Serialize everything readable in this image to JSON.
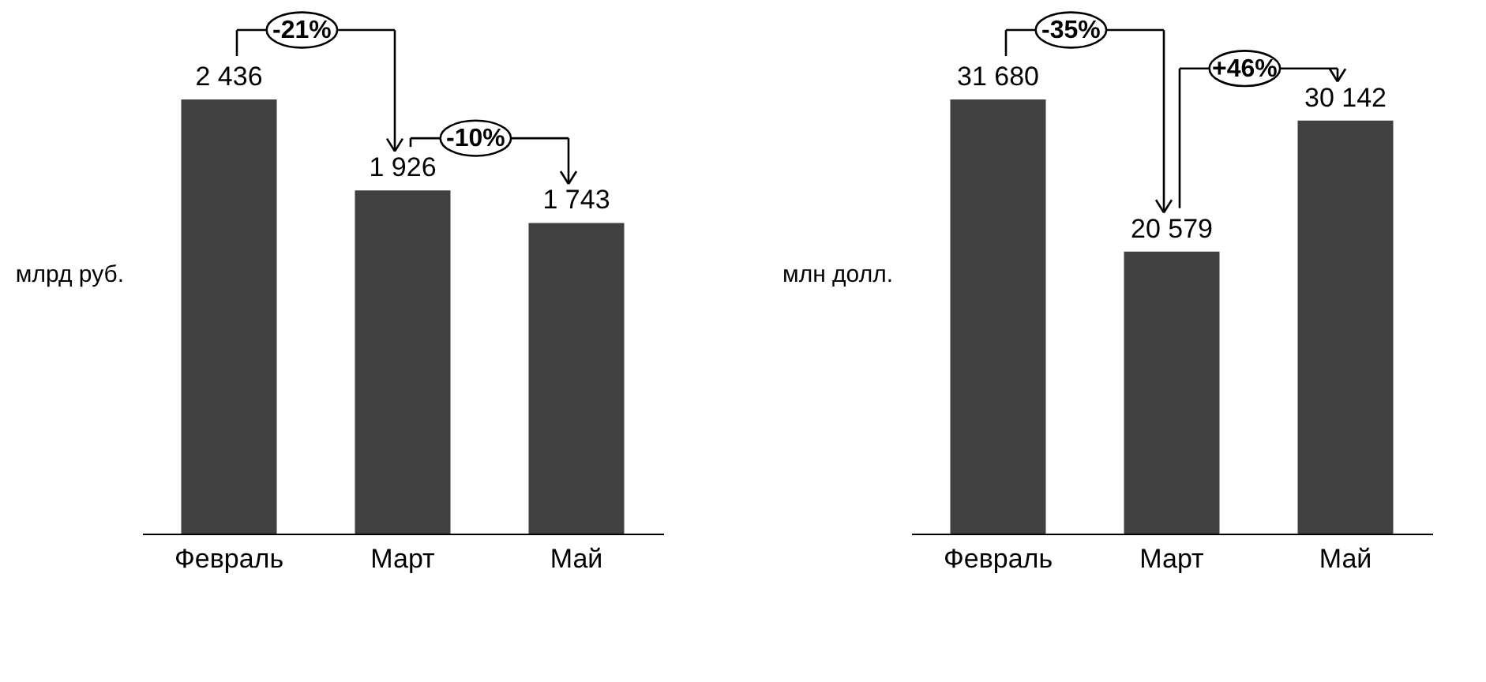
{
  "chart_data": [
    {
      "type": "bar",
      "ylabel": "млрд  руб.",
      "categories": [
        "Февраль",
        "Март",
        "Май"
      ],
      "values": [
        2436,
        1926,
        1743
      ],
      "value_labels": [
        "2 436",
        "1 926",
        "1 743"
      ],
      "color": "#404040",
      "tick_labels": "x",
      "grid": false,
      "annotations": [
        "-21%",
        "-10%"
      ]
    },
    {
      "type": "bar",
      "ylabel": "млн  долл.",
      "categories": [
        "Февраль",
        "Март",
        "Май"
      ],
      "values": [
        31680,
        20579,
        30142
      ],
      "value_labels": [
        "31 680",
        "20 579",
        "30 142"
      ],
      "color": "#404040",
      "tick_labels": "x",
      "grid": false,
      "annotations": [
        "-35%",
        "+46%"
      ]
    }
  ]
}
